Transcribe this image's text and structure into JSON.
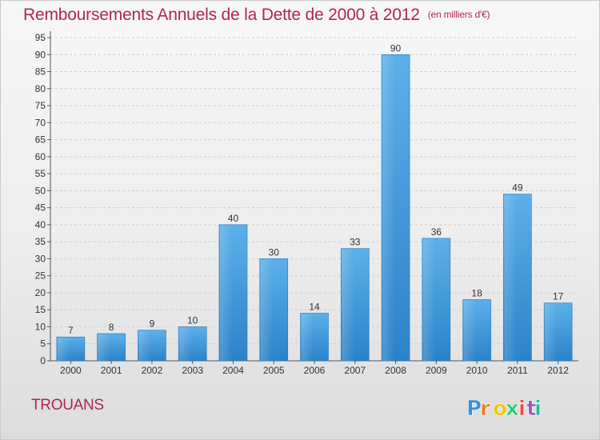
{
  "header": {
    "title": "Remboursements Annuels de la Dette de 2000 à 2012",
    "unit": "(en milliers d'€)"
  },
  "commune": "TROUANS",
  "logo": {
    "text": "Proxiti",
    "colors": [
      "#3b8fd6",
      "#e67e22",
      "#f1c40f",
      "#2ecc71",
      "#e74c3c",
      "#9b59b6",
      "#1abc9c"
    ]
  },
  "chart_data": {
    "type": "bar",
    "title": "Remboursements Annuels de la Dette de 2000 à 2012",
    "xlabel": "",
    "ylabel": "",
    "categories": [
      "2000",
      "2001",
      "2002",
      "2003",
      "2004",
      "2005",
      "2006",
      "2007",
      "2008",
      "2009",
      "2010",
      "2011",
      "2012"
    ],
    "values": [
      7,
      8,
      9,
      10,
      40,
      30,
      14,
      33,
      90,
      36,
      18,
      49,
      17
    ],
    "ylim": [
      0,
      95
    ],
    "yticks": [
      0,
      5,
      10,
      15,
      20,
      25,
      30,
      35,
      40,
      45,
      50,
      55,
      60,
      65,
      70,
      75,
      80,
      85,
      90,
      95
    ],
    "grid": true,
    "bar_color": "#3a96dc",
    "bar_color_light": "#5aafeb",
    "bar_color_dark": "#2a7fc4",
    "data_labels": true
  }
}
